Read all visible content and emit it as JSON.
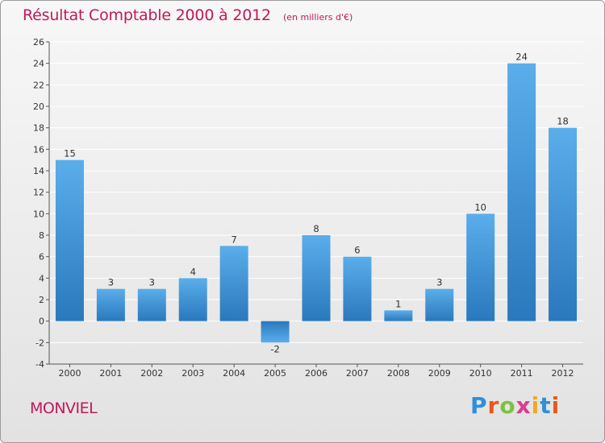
{
  "title": "Résultat Comptable 2000 à 2012",
  "unit_label": "(en milliers d'€)",
  "commune": "MONVIEL",
  "brand": {
    "letters": [
      "P",
      "r",
      "o",
      "x",
      "i",
      "t",
      "i"
    ],
    "colors": [
      "#2e8fd8",
      "#e8581c",
      "#7cc242",
      "#e03a8f",
      "#f5a623",
      "#2e8fd8",
      "#e8581c"
    ]
  },
  "colors": {
    "bar_top": "#5aaeea",
    "bar_bottom": "#2a78bd",
    "grid": "#ffffff",
    "axis": "#555555",
    "title": "#c2185b"
  },
  "chart_data": {
    "type": "bar",
    "title": "Résultat Comptable 2000 à 2012",
    "xlabel": "",
    "ylabel": "en milliers d'€",
    "categories": [
      "2000",
      "2001",
      "2002",
      "2003",
      "2004",
      "2005",
      "2006",
      "2007",
      "2008",
      "2009",
      "2010",
      "2011",
      "2012"
    ],
    "values": [
      15,
      3,
      3,
      4,
      7,
      -2,
      8,
      6,
      1,
      3,
      10,
      24,
      18
    ],
    "ylim": [
      -4,
      26
    ],
    "yticks": [
      -4,
      -2,
      0,
      2,
      4,
      6,
      8,
      10,
      12,
      14,
      16,
      18,
      20,
      22,
      24,
      26
    ],
    "grid": true,
    "legend": "none"
  }
}
